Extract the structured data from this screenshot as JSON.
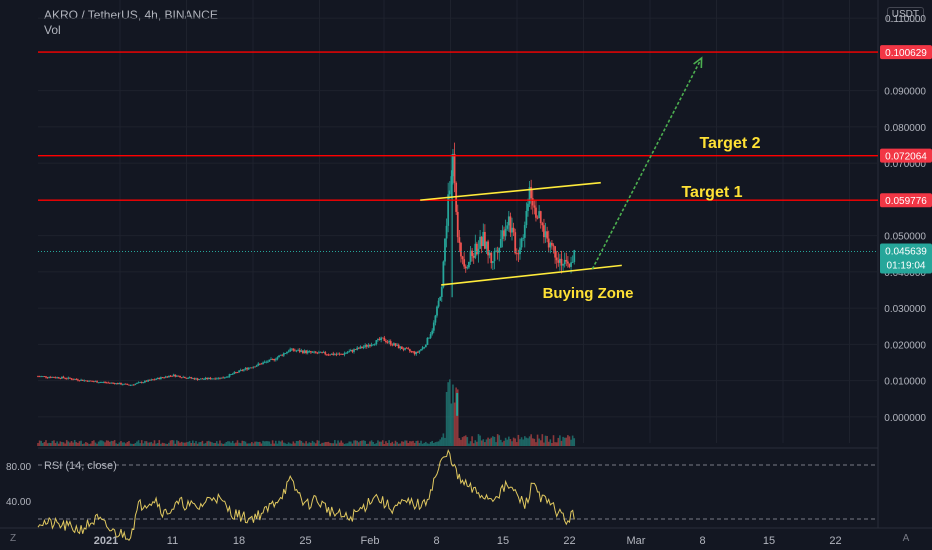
{
  "header": {
    "symbol_line": "AKRO / TetherUS, 4h, BINANCE",
    "vol_label": "Vol",
    "currency_button": "USDT"
  },
  "colors": {
    "background": "#131722",
    "up": "#26a69a",
    "down": "#ef5350",
    "level_line": "#ff0000",
    "trendline": "#ffeb3b",
    "arrow": "#4caf50",
    "annotation_text": "#ffe135",
    "rsi_line": "#e0c860",
    "last_price_bg": "#26a69a"
  },
  "levels": [
    {
      "value": 0.100629,
      "label": "0.100629"
    },
    {
      "value": 0.072064,
      "label": "0.072064"
    },
    {
      "value": 0.059776,
      "label": "0.059776"
    }
  ],
  "last_price": {
    "value": 0.045639,
    "label": "0.045639",
    "countdown": "01:19:04"
  },
  "annotations": {
    "target1": "Target 1",
    "target2": "Target 2",
    "buying_zone": "Buying Zone"
  },
  "rsi": {
    "label": "RSI (14, close)",
    "upper": "80.00",
    "lower": "40.00"
  },
  "bottom_bar": {
    "left_icon": "Z",
    "right_icon": "A"
  },
  "chart_data": {
    "type": "candlestick",
    "title": "AKRO / TetherUS, 4h, BINANCE",
    "y_axis": {
      "ticks": [
        "0.110000",
        "0.090000",
        "0.080000",
        "0.070000",
        "0.050000",
        "0.040000",
        "0.030000",
        "0.020000",
        "0.010000",
        "0.000000"
      ],
      "tick_values": [
        0.11,
        0.09,
        0.08,
        0.07,
        0.05,
        0.04,
        0.03,
        0.02,
        0.01,
        0.0
      ],
      "ylim": [
        -0.0072,
        0.115
      ]
    },
    "x_axis": {
      "ticks": [
        "2021",
        "11",
        "18",
        "25",
        "Feb",
        "8",
        "15",
        "22",
        "Mar",
        "8",
        "15",
        "22"
      ],
      "xlim": [
        0,
        100
      ]
    },
    "price_path": [
      [
        0,
        0.0112
      ],
      [
        3,
        0.0108
      ],
      [
        6,
        0.0099
      ],
      [
        9,
        0.0093
      ],
      [
        11,
        0.0088
      ],
      [
        13,
        0.0099
      ],
      [
        16,
        0.0115
      ],
      [
        19,
        0.0104
      ],
      [
        22,
        0.0108
      ],
      [
        25,
        0.0135
      ],
      [
        28,
        0.0158
      ],
      [
        30,
        0.0185
      ],
      [
        33,
        0.0176
      ],
      [
        36,
        0.0172
      ],
      [
        39,
        0.0195
      ],
      [
        41,
        0.0215
      ],
      [
        43,
        0.0192
      ],
      [
        45,
        0.0175
      ],
      [
        46,
        0.0195
      ],
      [
        47,
        0.0245
      ],
      [
        48,
        0.035
      ],
      [
        49,
        0.065
      ],
      [
        49.5,
        0.072
      ],
      [
        50,
        0.047
      ],
      [
        51,
        0.042
      ],
      [
        52,
        0.046
      ],
      [
        53,
        0.049
      ],
      [
        54,
        0.043
      ],
      [
        55,
        0.049
      ],
      [
        56,
        0.055
      ],
      [
        57,
        0.045
      ],
      [
        58,
        0.053
      ],
      [
        58.5,
        0.065
      ],
      [
        59,
        0.059
      ],
      [
        60,
        0.052
      ],
      [
        61,
        0.048
      ],
      [
        62,
        0.044
      ],
      [
        63,
        0.041
      ],
      [
        64,
        0.0456
      ]
    ],
    "trend_channel": {
      "upper": [
        [
          45.5,
          0.0598
        ],
        [
          67,
          0.0646
        ]
      ],
      "lower": [
        [
          48,
          0.0364
        ],
        [
          69.5,
          0.0418
        ]
      ]
    },
    "arrow": {
      "from": [
        66,
        0.0408
      ],
      "to": [
        79,
        0.099
      ]
    },
    "rsi_path": [
      [
        0,
        38
      ],
      [
        3,
        35
      ],
      [
        5,
        32
      ],
      [
        7,
        40
      ],
      [
        9,
        30
      ],
      [
        11,
        28
      ],
      [
        12,
        50
      ],
      [
        14,
        55
      ],
      [
        15,
        44
      ],
      [
        17,
        52
      ],
      [
        19,
        48
      ],
      [
        21,
        58
      ],
      [
        23,
        45
      ],
      [
        25,
        40
      ],
      [
        27,
        45
      ],
      [
        29,
        58
      ],
      [
        30,
        68
      ],
      [
        32,
        50
      ],
      [
        33,
        55
      ],
      [
        35,
        45
      ],
      [
        37,
        40
      ],
      [
        39,
        50
      ],
      [
        40,
        58
      ],
      [
        42,
        48
      ],
      [
        44,
        52
      ],
      [
        46,
        50
      ],
      [
        48,
        82
      ],
      [
        49,
        89
      ],
      [
        50,
        70
      ],
      [
        52,
        60
      ],
      [
        54,
        55
      ],
      [
        56,
        65
      ],
      [
        58,
        50
      ],
      [
        59,
        68
      ],
      [
        60,
        55
      ],
      [
        62,
        45
      ],
      [
        63,
        38
      ],
      [
        64,
        45
      ]
    ]
  }
}
